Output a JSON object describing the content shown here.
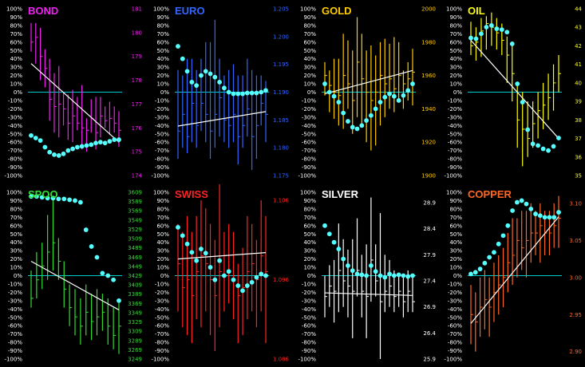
{
  "theme": {
    "background": "#000000",
    "grid_border": "#ffffff",
    "osc_line": "#00cccc",
    "osc_dot": "#55ffff",
    "trend_line": "#ffffff"
  },
  "chart_data": [
    {
      "type": "bar",
      "title": "BOND",
      "color": "#ee22ee",
      "left_ticks": [
        "100%",
        "90%",
        "80%",
        "70%",
        "60%",
        "50%",
        "40%",
        "30%",
        "20%",
        "10%",
        "0%",
        "-10%",
        "-20%",
        "-30%",
        "-40%",
        "-50%",
        "-60%",
        "-70%",
        "-80%",
        "-90%",
        "-100%"
      ],
      "right_ticks": [
        "181",
        "180",
        "179",
        "178",
        "177",
        "176",
        "175",
        "174"
      ],
      "price_range": [
        174,
        181
      ],
      "bars": [
        [
          179.2,
          180.4,
          179.6
        ],
        [
          178.7,
          180.4,
          179.8
        ],
        [
          178.0,
          180.2,
          179.0
        ],
        [
          177.7,
          179.3,
          178.5
        ],
        [
          176.3,
          178.9,
          177.2
        ],
        [
          175.8,
          178.3,
          176.9
        ],
        [
          175.6,
          178.6,
          177.0
        ],
        [
          176.1,
          177.5,
          176.8
        ],
        [
          175.5,
          177.4,
          176.2
        ],
        [
          175.4,
          177.6,
          176.5
        ],
        [
          175.9,
          177.3,
          176.2
        ],
        [
          175.1,
          177.8,
          176.0
        ],
        [
          175.0,
          176.4,
          175.9
        ],
        [
          175.8,
          177.2,
          176.4
        ],
        [
          175.1,
          177.3,
          175.8
        ],
        [
          175.6,
          177.3,
          176.5
        ],
        [
          176.0,
          176.9,
          176.3
        ],
        [
          175.7,
          177.1,
          176.4
        ],
        [
          175.8,
          176.9,
          176.2
        ],
        [
          175.2,
          176.7,
          175.9
        ]
      ],
      "oscillator": [
        -52,
        -55,
        -58,
        -66,
        -72,
        -75,
        -76,
        -74,
        -70,
        -68,
        -66,
        -65,
        -64,
        -63,
        -61,
        -60,
        -61,
        -59,
        -57,
        -57
      ],
      "trend": [
        [
          0,
          178.7
        ],
        [
          19,
          175.4
        ]
      ]
    },
    {
      "type": "bar",
      "title": "EURO",
      "color": "#3366ff",
      "left_ticks": [
        "100%",
        "90%",
        "80%",
        "70%",
        "60%",
        "50%",
        "40%",
        "30%",
        "20%",
        "10%",
        "0%",
        "-10%",
        "-20%",
        "-30%",
        "-40%",
        "-50%",
        "-60%",
        "-70%",
        "-80%",
        "-90%",
        "-100%"
      ],
      "right_ticks": [
        "1.205",
        "1.200",
        "1.195",
        "1.190",
        "1.185",
        "1.180",
        "1.175"
      ],
      "price_range": [
        1.175,
        1.205
      ],
      "bars": [
        [
          1.178,
          1.194,
          1.183
        ],
        [
          1.18,
          1.193,
          1.186
        ],
        [
          1.179,
          1.196,
          1.182
        ],
        [
          1.181,
          1.196,
          1.188
        ],
        [
          1.18,
          1.194,
          1.184
        ],
        [
          1.183,
          1.196,
          1.188
        ],
        [
          1.181,
          1.199,
          1.186
        ],
        [
          1.178,
          1.199,
          1.183
        ],
        [
          1.18,
          1.203,
          1.186
        ],
        [
          1.182,
          1.196,
          1.189
        ],
        [
          1.181,
          1.193,
          1.185
        ],
        [
          1.18,
          1.194,
          1.184
        ],
        [
          1.181,
          1.195,
          1.186
        ],
        [
          1.177,
          1.193,
          1.182
        ],
        [
          1.18,
          1.193,
          1.184
        ],
        [
          1.182,
          1.196,
          1.187
        ],
        [
          1.176,
          1.194,
          1.182
        ],
        [
          1.178,
          1.193,
          1.184
        ],
        [
          1.184,
          1.193,
          1.188
        ],
        [
          1.181,
          1.192,
          1.186
        ]
      ],
      "oscillator": [
        55,
        40,
        25,
        12,
        8,
        20,
        25,
        22,
        18,
        12,
        5,
        0,
        -2,
        -2,
        -2,
        -1,
        -1,
        -1,
        0,
        2
      ],
      "trend": [
        [
          0,
          1.1839
        ],
        [
          19,
          1.1865
        ]
      ]
    },
    {
      "type": "bar",
      "title": "GOLD",
      "color": "#ffcc00",
      "left_ticks": [
        "100%",
        "90%",
        "80%",
        "70%",
        "60%",
        "50%",
        "40%",
        "30%",
        "20%",
        "10%",
        "0%",
        "-10%",
        "-20%",
        "-30%",
        "-40%",
        "-50%",
        "-60%",
        "-70%",
        "-80%",
        "-90%",
        "-100%"
      ],
      "right_ticks": [
        "2000",
        "1980",
        "1960",
        "1940",
        "1920",
        "1900"
      ],
      "price_range": [
        1900,
        2000
      ],
      "bars": [
        [
          1948,
          1968,
          1960
        ],
        [
          1938,
          1963,
          1954
        ],
        [
          1934,
          1970,
          1950
        ],
        [
          1930,
          1970,
          1948
        ],
        [
          1928,
          1985,
          1960
        ],
        [
          1940,
          1981,
          1955
        ],
        [
          1925,
          1975,
          1945
        ],
        [
          1935,
          1995,
          1968
        ],
        [
          1930,
          1985,
          1958
        ],
        [
          1920,
          1975,
          1950
        ],
        [
          1915,
          1978,
          1945
        ],
        [
          1918,
          1972,
          1950
        ],
        [
          1930,
          1980,
          1960
        ],
        [
          1935,
          1982,
          1955
        ],
        [
          1940,
          1979,
          1958
        ],
        [
          1938,
          1983,
          1952
        ],
        [
          1945,
          1980,
          1960
        ],
        [
          1940,
          1963,
          1955
        ],
        [
          1945,
          1968,
          1958
        ],
        [
          1942,
          1976,
          1962
        ]
      ],
      "oscillator": [
        10,
        0,
        -5,
        -12,
        -25,
        -35,
        -42,
        -44,
        -40,
        -34,
        -28,
        -20,
        -12,
        -6,
        -2,
        -5,
        -10,
        -4,
        2,
        10
      ],
      "trend": [
        [
          0,
          1949
        ],
        [
          19,
          1963
        ]
      ]
    },
    {
      "type": "bar",
      "title": "OIL",
      "color": "#ffff00",
      "left_ticks": [
        "100%",
        "90%",
        "80%",
        "70%",
        "60%",
        "50%",
        "40%",
        "30%",
        "20%",
        "10%",
        "0%",
        "-10%",
        "-20%",
        "-30%",
        "-40%",
        "-50%",
        "-60%",
        "-70%",
        "-80%",
        "-90%",
        "-100%"
      ],
      "right_ticks": [
        "44",
        "43",
        "42",
        "41",
        "40",
        "39",
        "38",
        "37",
        "36",
        "35"
      ],
      "price_range": [
        35,
        44
      ],
      "bars": [
        [
          41.5,
          43.3,
          42.0
        ],
        [
          41.2,
          43.0,
          42.2
        ],
        [
          41.4,
          43.5,
          42.8
        ],
        [
          41.8,
          43.6,
          43.2
        ],
        [
          42.0,
          43.8,
          43.0
        ],
        [
          41.8,
          43.5,
          42.7
        ],
        [
          41.5,
          43.2,
          42.3
        ],
        [
          40.0,
          42.5,
          41.5
        ],
        [
          39.0,
          42.0,
          40.5
        ],
        [
          36.5,
          40.0,
          38.0
        ],
        [
          35.5,
          39.5,
          37.5
        ],
        [
          36.0,
          39.0,
          37.0
        ],
        [
          36.5,
          39.0,
          37.8
        ],
        [
          37.0,
          39.5,
          38.5
        ],
        [
          37.5,
          40.0,
          38.8
        ],
        [
          38.0,
          40.5,
          39.2
        ],
        [
          38.5,
          41.0,
          40.0
        ],
        [
          39.5,
          41.5,
          40.5
        ]
      ],
      "oscillator": [
        65,
        64,
        70,
        78,
        80,
        76,
        75,
        72,
        58,
        10,
        -12,
        -45,
        -62,
        -64,
        -68,
        -70,
        -65,
        -55
      ],
      "trend": [
        [
          0,
          42.3
        ],
        [
          17,
          37.0
        ]
      ]
    },
    {
      "type": "bar",
      "title": "SPOO",
      "color": "#33dd33",
      "left_ticks": [
        "100%",
        "90%",
        "80%",
        "70%",
        "60%",
        "50%",
        "40%",
        "30%",
        "20%",
        "10%",
        "0%",
        "-10%",
        "-20%",
        "-30%",
        "-40%",
        "-50%",
        "-60%",
        "-70%",
        "-80%",
        "-90%",
        "-100%"
      ],
      "right_ticks": [
        "3609",
        "3589",
        "3569",
        "3549",
        "3529",
        "3509",
        "3489",
        "3469",
        "3449",
        "3429",
        "3409",
        "3389",
        "3369",
        "3349",
        "3329",
        "3309",
        "3289",
        "3269",
        "3249"
      ],
      "price_range": [
        3249,
        3609
      ],
      "bars": [
        [
          3360,
          3440,
          3380
        ],
        [
          3380,
          3480,
          3420
        ],
        [
          3400,
          3500,
          3450
        ],
        [
          3420,
          3560,
          3480
        ],
        [
          3440,
          3600,
          3500
        ],
        [
          3420,
          3510,
          3460
        ],
        [
          3360,
          3460,
          3400
        ],
        [
          3320,
          3410,
          3360
        ],
        [
          3300,
          3400,
          3340
        ],
        [
          3280,
          3380,
          3320
        ],
        [
          3300,
          3410,
          3350
        ],
        [
          3290,
          3390,
          3330
        ],
        [
          3300,
          3400,
          3340
        ],
        [
          3310,
          3390,
          3350
        ],
        [
          3280,
          3380,
          3320
        ],
        [
          3270,
          3360,
          3300
        ],
        [
          3260,
          3370,
          3320
        ]
      ],
      "oscillator": [
        95,
        95,
        94,
        93,
        93,
        92,
        92,
        91,
        90,
        88,
        55,
        35,
        22,
        3,
        0,
        -5,
        -30
      ],
      "trend": [
        [
          0,
          3460
        ],
        [
          16,
          3355
        ]
      ]
    },
    {
      "type": "bar",
      "title": "SWISS",
      "color": "#ff2222",
      "left_ticks": [
        "100%",
        "90%",
        "80%",
        "70%",
        "60%",
        "50%",
        "40%",
        "30%",
        "20%",
        "10%",
        "0%",
        "-10%",
        "-20%",
        "-30%",
        "-40%",
        "-50%",
        "-60%",
        "-70%",
        "-80%",
        "-90%",
        "-100%"
      ],
      "right_ticks": [
        "1.106",
        "1.096",
        "1.086"
      ],
      "price_range": [
        1.086,
        1.107
      ],
      "bars": [
        [
          1.092,
          1.103,
          1.098
        ],
        [
          1.09,
          1.102,
          1.095
        ],
        [
          1.089,
          1.104,
          1.096
        ],
        [
          1.088,
          1.102,
          1.094
        ],
        [
          1.091,
          1.104,
          1.097
        ],
        [
          1.09,
          1.106,
          1.099
        ],
        [
          1.092,
          1.105,
          1.098
        ],
        [
          1.089,
          1.103,
          1.096
        ],
        [
          1.087,
          1.101,
          1.094
        ],
        [
          1.09,
          1.108,
          1.097
        ],
        [
          1.092,
          1.102,
          1.099
        ],
        [
          1.093,
          1.103,
          1.097
        ],
        [
          1.091,
          1.102,
          1.096
        ],
        [
          1.088,
          1.098,
          1.094
        ],
        [
          1.089,
          1.1,
          1.095
        ],
        [
          1.091,
          1.104,
          1.097
        ],
        [
          1.092,
          1.103,
          1.098
        ],
        [
          1.09,
          1.101,
          1.096
        ],
        [
          1.092,
          1.106,
          1.099
        ],
        [
          1.088,
          1.104,
          1.097
        ]
      ],
      "oscillator": [
        58,
        48,
        38,
        28,
        18,
        32,
        27,
        10,
        -5,
        18,
        0,
        5,
        -5,
        -12,
        -18,
        -12,
        -8,
        -2,
        2,
        0
      ],
      "trend": [
        [
          0,
          1.0986
        ],
        [
          19,
          1.0994
        ]
      ]
    },
    {
      "type": "bar",
      "title": "SILVER",
      "color": "#ffffff",
      "left_ticks": [
        "100%",
        "90%",
        "80%",
        "70%",
        "60%",
        "50%",
        "40%",
        "30%",
        "20%",
        "10%",
        "0%",
        "-10%",
        "-20%",
        "-30%",
        "-40%",
        "-50%",
        "-60%",
        "-70%",
        "-80%",
        "-90%",
        "-100%"
      ],
      "right_ticks": [
        "28.9",
        "28.4",
        "27.9",
        "27.4",
        "26.9",
        "26.4",
        "25.9"
      ],
      "price_range": [
        25.9,
        29.1
      ],
      "bars": [
        [
          26.7,
          27.5,
          27.1
        ],
        [
          26.9,
          27.7,
          27.3
        ],
        [
          26.6,
          27.8,
          27.2
        ],
        [
          26.8,
          28.5,
          27.6
        ],
        [
          26.9,
          28.2,
          27.4
        ],
        [
          26.7,
          28.0,
          27.3
        ],
        [
          26.3,
          28.2,
          27.2
        ],
        [
          27.1,
          28.6,
          27.6
        ],
        [
          26.7,
          27.9,
          27.2
        ],
        [
          26.3,
          28.1,
          27.1
        ],
        [
          27.0,
          29.0,
          27.8
        ],
        [
          27.1,
          28.1,
          27.4
        ],
        [
          25.9,
          28.7,
          27.0
        ],
        [
          26.8,
          27.9,
          27.2
        ],
        [
          26.9,
          27.8,
          27.3
        ],
        [
          26.8,
          27.6,
          27.1
        ],
        [
          26.9,
          27.5,
          27.2
        ],
        [
          26.7,
          27.5,
          27.0
        ],
        [
          26.8,
          27.6,
          27.2
        ],
        [
          26.8,
          27.5,
          27.0
        ]
      ],
      "oscillator": [
        60,
        50,
        40,
        32,
        20,
        12,
        6,
        2,
        1,
        0,
        12,
        5,
        0,
        -2,
        2,
        0,
        1,
        0,
        -1,
        0
      ],
      "trend": [
        [
          0,
          27.17
        ],
        [
          19,
          27.12
        ]
      ]
    },
    {
      "type": "bar",
      "title": "COPPER",
      "color": "#ff6622",
      "left_ticks": [
        "100%",
        "90%",
        "80%",
        "70%",
        "60%",
        "50%",
        "40%",
        "30%",
        "20%",
        "10%",
        "0%",
        "-10%",
        "-20%",
        "-30%",
        "-40%",
        "-50%",
        "-60%",
        "-70%",
        "-80%",
        "-90%",
        "-100%"
      ],
      "right_ticks": [
        "3.10",
        "3.05",
        "3.00",
        "2.95",
        "2.90"
      ],
      "price_range": [
        2.89,
        3.115
      ],
      "bars": [
        [
          2.91,
          2.99,
          2.95
        ],
        [
          2.9,
          2.98,
          2.94
        ],
        [
          2.92,
          3.0,
          2.96
        ],
        [
          2.93,
          3.01,
          2.97
        ],
        [
          2.92,
          3.0,
          2.96
        ],
        [
          2.94,
          3.02,
          2.98
        ],
        [
          2.95,
          3.03,
          2.99
        ],
        [
          2.96,
          3.04,
          3.0
        ],
        [
          2.98,
          3.06,
          3.02
        ],
        [
          2.99,
          3.08,
          3.03
        ],
        [
          3.0,
          3.08,
          3.05
        ],
        [
          3.01,
          3.09,
          3.04
        ],
        [
          3.0,
          3.09,
          3.05
        ],
        [
          3.02,
          3.1,
          3.06
        ],
        [
          3.03,
          3.09,
          3.06
        ],
        [
          3.02,
          3.1,
          3.07
        ],
        [
          3.03,
          3.09,
          3.06
        ],
        [
          3.03,
          3.09,
          3.06
        ],
        [
          3.04,
          3.1,
          3.07
        ],
        [
          3.04,
          3.11,
          3.08
        ]
      ],
      "oscillator": [
        2,
        4,
        8,
        15,
        22,
        28,
        38,
        48,
        60,
        78,
        88,
        90,
        86,
        80,
        74,
        72,
        70,
        70,
        70,
        76
      ],
      "trend": [
        [
          0,
          2.938
        ],
        [
          19,
          3.082
        ]
      ]
    }
  ]
}
